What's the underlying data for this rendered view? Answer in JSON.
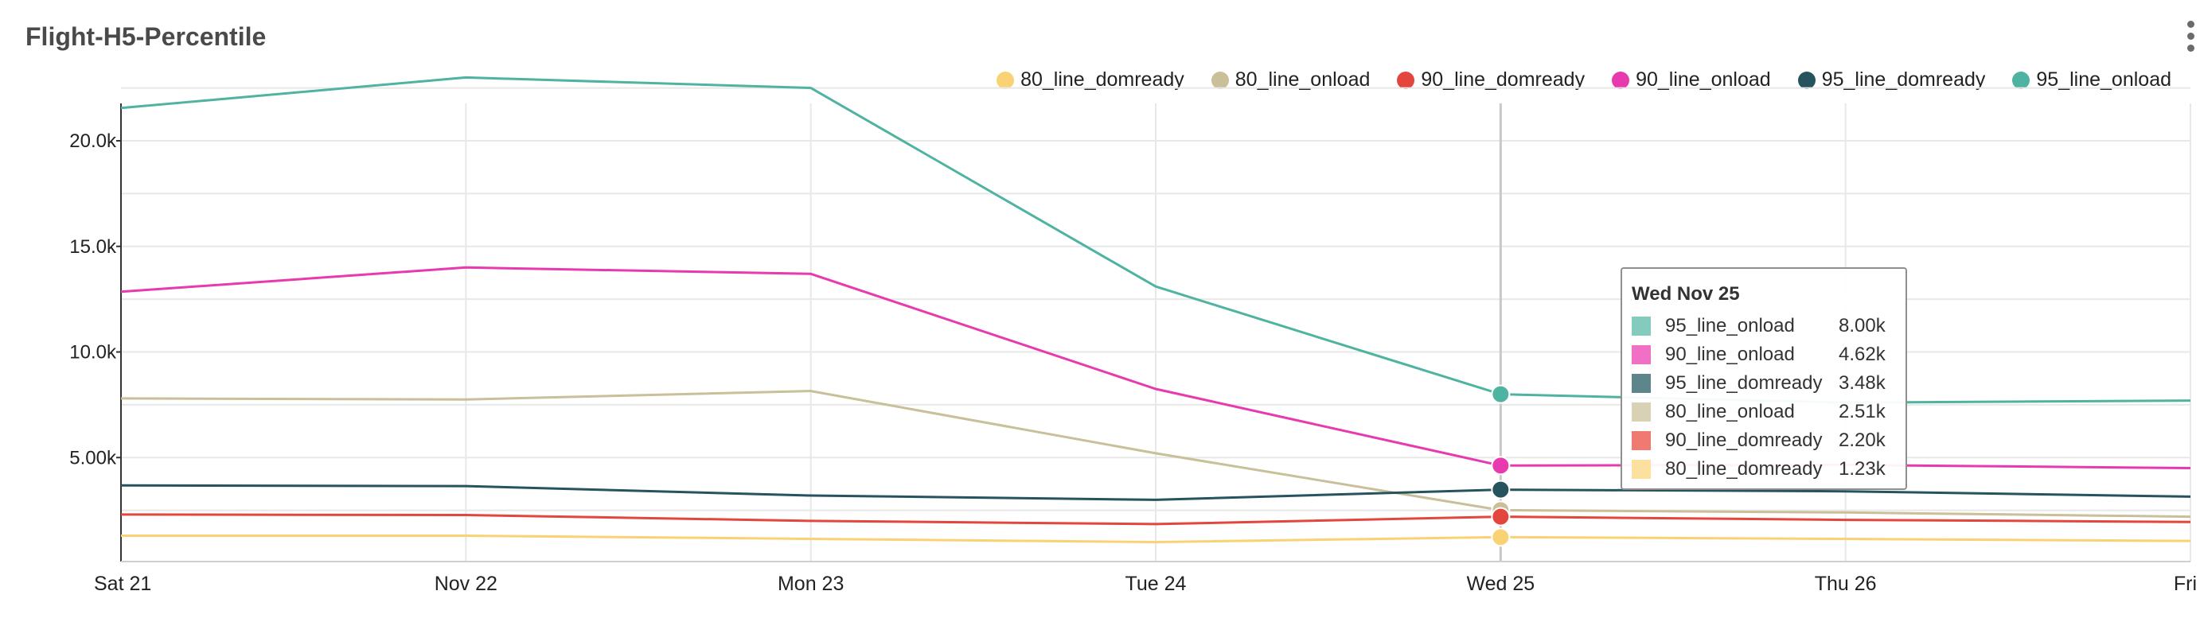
{
  "header": {
    "title": "Flight-H5-Percentile",
    "menu_icon": "kebab-menu-icon"
  },
  "chart_data": {
    "type": "line",
    "title": "Flight-H5-Percentile",
    "xlabel": "",
    "ylabel": "",
    "categories": [
      "Sat 21",
      "Nov 22",
      "Mon 23",
      "Tue 24",
      "Wed 25",
      "Thu 26",
      "Fri"
    ],
    "ylim": [
      0,
      22500
    ],
    "yticks": [
      {
        "value": 5000,
        "label": "5.00k"
      },
      {
        "value": 10000,
        "label": "10.0k"
      },
      {
        "value": 15000,
        "label": "15.0k"
      },
      {
        "value": 20000,
        "label": "20.0k"
      }
    ],
    "grid": true,
    "legend_position": "top-right",
    "series": [
      {
        "name": "80_line_domready",
        "color": "#f9d276",
        "values": [
          1300,
          1300,
          1150,
          1000,
          1230,
          1150,
          1050
        ]
      },
      {
        "name": "80_line_onload",
        "color": "#c9bf99",
        "values": [
          7800,
          7750,
          8150,
          5200,
          2510,
          2400,
          2200
        ]
      },
      {
        "name": "90_line_domready",
        "color": "#e3463c",
        "values": [
          2300,
          2280,
          2000,
          1850,
          2200,
          2050,
          1950
        ]
      },
      {
        "name": "90_line_onload",
        "color": "#e83aae",
        "values": [
          12850,
          14000,
          13700,
          8250,
          4620,
          4650,
          4500
        ]
      },
      {
        "name": "95_line_domready",
        "color": "#27535f",
        "values": [
          3680,
          3650,
          3200,
          3000,
          3480,
          3400,
          3150
        ]
      },
      {
        "name": "95_line_onload",
        "color": "#4fb3a1",
        "values": [
          21550,
          23000,
          22500,
          13100,
          8000,
          7600,
          7700
        ]
      }
    ],
    "highlight_index": 4
  },
  "tooltip": {
    "title": "Wed Nov 25",
    "rows": [
      {
        "name": "95_line_onload",
        "value": "8.00k",
        "color": "#82cbbd"
      },
      {
        "name": "90_line_onload",
        "value": "4.62k",
        "color": "#ef70c4"
      },
      {
        "name": "95_line_domready",
        "value": "3.48k",
        "color": "#5e848c"
      },
      {
        "name": "80_line_onload",
        "value": "2.51k",
        "color": "#d8d1b6"
      },
      {
        "name": "90_line_domready",
        "value": "2.20k",
        "color": "#ef7a72"
      },
      {
        "name": "80_line_domready",
        "value": "1.23k",
        "color": "#fbe09f"
      }
    ]
  }
}
